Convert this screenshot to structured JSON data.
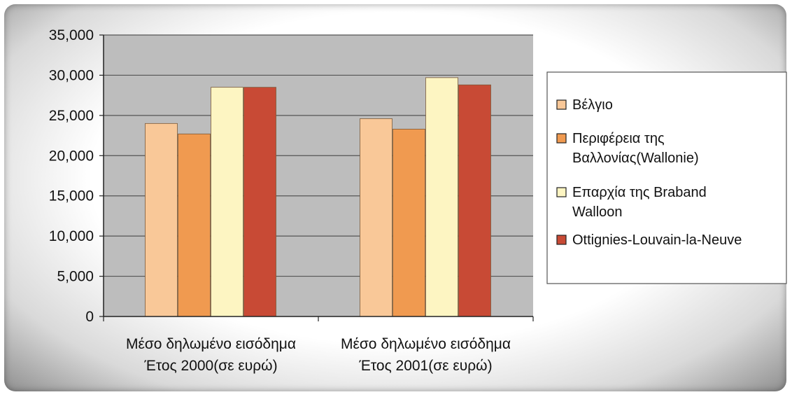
{
  "chart_data": {
    "type": "bar",
    "categories": [
      [
        "Μέσο δηλωμένο εισόδημα",
        "Έτος 2000(σε ευρώ)"
      ],
      [
        "Μέσο δηλωμένο εισόδημα",
        "Έτος 2001(σε ευρώ)"
      ]
    ],
    "series": [
      {
        "name": "Βέλγιο",
        "legend_lines": [
          "Βέλγιο"
        ],
        "color": "#f9c898",
        "values": [
          24000,
          24600
        ]
      },
      {
        "name": "Περιφέρεια της Βαλλονίας(Wallonie)",
        "legend_lines": [
          "Περιφέρεια της",
          "Βαλλονίας(Wallonie)"
        ],
        "color": "#f09a50",
        "values": [
          22700,
          23300
        ]
      },
      {
        "name": "Επαρχία της Braband Walloon",
        "legend_lines": [
          "Επαρχία της Braband",
          "Walloon"
        ],
        "color": "#fdf5c2",
        "values": [
          28500,
          29700
        ]
      },
      {
        "name": "Ottignies-Louvain-la-Neuve",
        "legend_lines": [
          "Ottignies-Louvain-la-Neuve"
        ],
        "color": "#c84a35",
        "values": [
          28500,
          28800
        ]
      }
    ],
    "ylim": [
      0,
      35000
    ],
    "yticks": [
      0,
      5000,
      10000,
      15000,
      20000,
      25000,
      30000,
      35000
    ],
    "ytick_labels": [
      "0",
      "5,000",
      "10,000",
      "15,000",
      "20,000",
      "25,000",
      "30,000",
      "35,000"
    ],
    "grid": true,
    "legend": "right",
    "plot_background": "#bdbdbd"
  }
}
